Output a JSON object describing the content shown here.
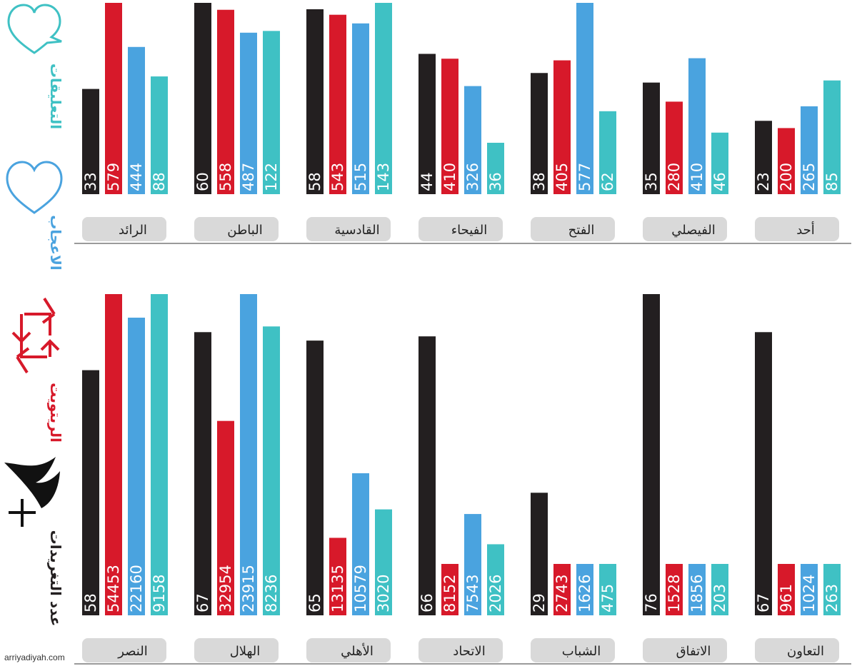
{
  "page": {
    "credit": "arriyadiyah.com",
    "legend": {
      "comments": "التعليقات",
      "likes": "الاعجاب",
      "retweets": "الريتويت",
      "tweets": "عدد التغريدات"
    },
    "colors": {
      "tweets": "#231f20",
      "retweets": "#d7192a",
      "likes": "#4aa3df",
      "comments": "#3fc1c4",
      "label_bg": "#d9d9d9",
      "axis": "#9a9a9a"
    },
    "icons": [
      "comment-heart-icon",
      "heart-icon",
      "retweet-icon",
      "quill-plus-icon"
    ]
  },
  "chart_data": [
    {
      "type": "bar",
      "series_order": [
        "tweets",
        "retweets",
        "likes",
        "comments"
      ],
      "categories": [
        "الرائد",
        "الباطن",
        "القادسية",
        "الفيحاء",
        "الفتح",
        "الفيصلي",
        "أحد"
      ],
      "series": [
        {
          "key": "tweets",
          "values": [
            33,
            60,
            58,
            44,
            38,
            35,
            23
          ]
        },
        {
          "key": "retweets",
          "values": [
            579,
            558,
            543,
            410,
            405,
            280,
            200
          ]
        },
        {
          "key": "likes",
          "values": [
            444,
            487,
            515,
            326,
            577,
            410,
            265
          ]
        },
        {
          "key": "comments",
          "values": [
            88,
            122,
            143,
            36,
            62,
            46,
            85
          ]
        }
      ]
    },
    {
      "type": "bar",
      "series_order": [
        "tweets",
        "retweets",
        "likes",
        "comments"
      ],
      "categories": [
        "النصر",
        "الهلال",
        "الأهلي",
        "الاتحاد",
        "الشباب",
        "الاتفاق",
        "التعاون"
      ],
      "series": [
        {
          "key": "tweets",
          "values": [
            58,
            67,
            65,
            66,
            29,
            76,
            67
          ]
        },
        {
          "key": "retweets",
          "values": [
            54453,
            32954,
            13135,
            8152,
            2743,
            1528,
            961
          ]
        },
        {
          "key": "likes",
          "values": [
            22160,
            23915,
            10579,
            7543,
            1626,
            1856,
            1024
          ]
        },
        {
          "key": "comments",
          "values": [
            9158,
            8236,
            3020,
            2026,
            475,
            203,
            263
          ]
        }
      ]
    }
  ]
}
